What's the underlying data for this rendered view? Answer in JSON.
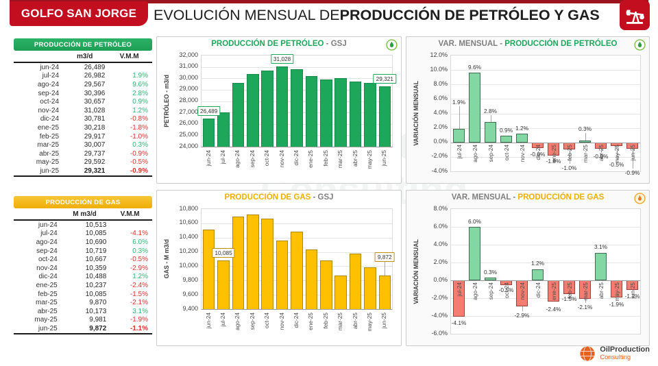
{
  "header": {
    "badge": "GOLFO SAN JORGE",
    "title_regular": "EVOLUCIÓN MENSUAL DE ",
    "title_bold": "PRODUCCIÓN DE PETRÓLEO Y GAS"
  },
  "watermark": {
    "line1": "OilProduction",
    "line2": "Consulting"
  },
  "colors": {
    "header_red": "#C20E1E",
    "oil_green": "#1CA75A",
    "gas_gold": "#FFC000",
    "gas_border": "#B38600",
    "var_pos_fill": "#82D7A2",
    "var_pos_border": "#3E6B51",
    "var_neg_fill": "#F47C70",
    "var_neg_border": "#99423A",
    "vmm_pos": "#2DB673",
    "vmm_neg": "#E0312A"
  },
  "tables": {
    "oil": {
      "title": "PRODUCCIÓN DE PETRÓLEO",
      "col_value": "m3/d",
      "col_vmm": "V.M.M",
      "rows": [
        {
          "month": "jun-24",
          "value": "26,489",
          "vmm": ""
        },
        {
          "month": "jul-24",
          "value": "26,982",
          "vmm": "1.9%"
        },
        {
          "month": "ago-24",
          "value": "29,567",
          "vmm": "9.6%"
        },
        {
          "month": "sep-24",
          "value": "30,396",
          "vmm": "2.8%"
        },
        {
          "month": "oct-24",
          "value": "30,657",
          "vmm": "0.9%"
        },
        {
          "month": "nov-24",
          "value": "31,028",
          "vmm": "1.2%"
        },
        {
          "month": "dic-24",
          "value": "30,781",
          "vmm": "-0.8%"
        },
        {
          "month": "ene-25",
          "value": "30,218",
          "vmm": "-1.8%"
        },
        {
          "month": "feb-25",
          "value": "29,917",
          "vmm": "-1.0%"
        },
        {
          "month": "mar-25",
          "value": "30,007",
          "vmm": "0.3%"
        },
        {
          "month": "abr-25",
          "value": "29,737",
          "vmm": "-0.9%"
        },
        {
          "month": "may-25",
          "value": "29,592",
          "vmm": "-0.5%"
        },
        {
          "month": "jun-25",
          "value": "29,321",
          "vmm": "-0.9%"
        }
      ]
    },
    "gas": {
      "title": "PRODUCCIÓN DE GAS",
      "col_value": "M m3/d",
      "col_vmm": "V.M.M",
      "rows": [
        {
          "month": "jun-24",
          "value": "10,513",
          "vmm": ""
        },
        {
          "month": "jul-24",
          "value": "10,085",
          "vmm": "-4.1%"
        },
        {
          "month": "ago-24",
          "value": "10,690",
          "vmm": "6.0%"
        },
        {
          "month": "sep-24",
          "value": "10,719",
          "vmm": "0.3%"
        },
        {
          "month": "oct-24",
          "value": "10,667",
          "vmm": "-0.5%"
        },
        {
          "month": "nov-24",
          "value": "10,359",
          "vmm": "-2.9%"
        },
        {
          "month": "dic-24",
          "value": "10,488",
          "vmm": "1.2%"
        },
        {
          "month": "ene-25",
          "value": "10,237",
          "vmm": "-2.4%"
        },
        {
          "month": "feb-25",
          "value": "10,085",
          "vmm": "-1.5%"
        },
        {
          "month": "mar-25",
          "value": "9,870",
          "vmm": "-2.1%"
        },
        {
          "month": "abr-25",
          "value": "10,173",
          "vmm": "3.1%"
        },
        {
          "month": "may-25",
          "value": "9,981",
          "vmm": "-1.9%"
        },
        {
          "month": "jun-25",
          "value": "9,872",
          "vmm": "-1.1%"
        }
      ]
    }
  },
  "chart_data": [
    {
      "id": "oil-prod",
      "type": "bar",
      "kind": "prod",
      "title_main": "PRODUCCIÓN DE PETRÓLEO",
      "title_suffix": " - GSJ",
      "ylabel": "PETRÓLEO - m3/d",
      "categories": [
        "jun-24",
        "jul-24",
        "ago-24",
        "sep-24",
        "oct-24",
        "nov-24",
        "dic-24",
        "ene-25",
        "feb-25",
        "mar-25",
        "abr-25",
        "may-25",
        "jun-25"
      ],
      "values": [
        26489,
        26982,
        29567,
        30396,
        30657,
        31028,
        30781,
        30218,
        29917,
        30007,
        29737,
        29592,
        29321
      ],
      "ylim": [
        24000,
        32000
      ],
      "ytick_step": 1000,
      "grid": true,
      "tick_format": "thousands",
      "fill": "#1CA75A",
      "border": "#14894a",
      "callout_border": "#1CA75A",
      "callouts": [
        {
          "index": 0,
          "label": "26,489"
        },
        {
          "index": 5,
          "label": "31,028"
        },
        {
          "index": 12,
          "label": "29,321"
        }
      ]
    },
    {
      "id": "gas-prod",
      "type": "bar",
      "kind": "prod",
      "title_main": "PRODUCCIÓN DE GAS",
      "title_suffix": " - GSJ",
      "ylabel": "GAS - M m3/d",
      "categories": [
        "jun-24",
        "jul-24",
        "ago-24",
        "sep-24",
        "oct-24",
        "nov-24",
        "dic-24",
        "ene-25",
        "feb-25",
        "mar-25",
        "abr-25",
        "may-25",
        "jun-25"
      ],
      "values": [
        10513,
        10085,
        10690,
        10719,
        10667,
        10359,
        10488,
        10237,
        10085,
        9870,
        10173,
        9981,
        9872
      ],
      "ylim": [
        9400,
        10800
      ],
      "ytick_step": 200,
      "grid": true,
      "tick_format": "thousands",
      "fill": "#FFC000",
      "border": "#B38600",
      "callout_border": "#C09000",
      "callouts": [
        {
          "index": 1,
          "label": "10,085"
        },
        {
          "index": 12,
          "label": "9,872",
          "ly": 10060
        }
      ]
    },
    {
      "id": "oil-var",
      "type": "bar",
      "kind": "var",
      "title_prefix": "VAR.  MENSUAL - ",
      "title_main": "PRODUCCIÓN DE PETRÓLEO",
      "ylabel": "VARIACIÓN MENSUAL",
      "categories": [
        "jul-24",
        "ago-24",
        "sep-24",
        "oct-24",
        "nov-24",
        "dic-24",
        "ene-25",
        "feb-25",
        "mar-25",
        "abr-25",
        "may-25",
        "jun-25"
      ],
      "values": [
        1.9,
        9.6,
        2.8,
        0.9,
        1.2,
        -0.8,
        -1.8,
        -1.0,
        0.3,
        -0.9,
        -0.5,
        -0.9
      ],
      "ylim": [
        -4,
        12
      ],
      "ytick_step": 2,
      "grid": true,
      "tick_format": "percent",
      "label_pos": [
        5.6,
        10.4,
        4.3,
        1.7,
        2.0,
        -1.6,
        -2.6,
        -3.5,
        1.9,
        -1.9,
        -3.1,
        -4.2
      ]
    },
    {
      "id": "gas-var",
      "type": "bar",
      "kind": "var",
      "title_prefix": "VAR.  MENSUAL - ",
      "title_main": "PRODUCCIÓN DE GAS",
      "ylabel": "VARIACIÓN MENSUAL",
      "categories": [
        "jul-24",
        "ago-24",
        "sep-24",
        "oct-24",
        "nov-24",
        "dic-24",
        "ene-25",
        "feb-25",
        "mar-25",
        "abr-25",
        "may-25",
        "jun-25"
      ],
      "values": [
        -4.1,
        6.0,
        0.3,
        -0.5,
        -2.9,
        1.2,
        -2.4,
        -1.5,
        -2.1,
        3.1,
        -1.9,
        -1.1
      ],
      "ylim": [
        -6,
        8
      ],
      "ytick_step": 2,
      "grid": true,
      "tick_format": "percent",
      "label_pos": [
        -4.8,
        6.6,
        0.9,
        -1.1,
        -3.9,
        1.9,
        -3.2,
        -2.1,
        -3.0,
        3.8,
        -2.7,
        -1.8
      ]
    }
  ],
  "logo": {
    "name": "OilProduction",
    "sub": "Consulting"
  }
}
